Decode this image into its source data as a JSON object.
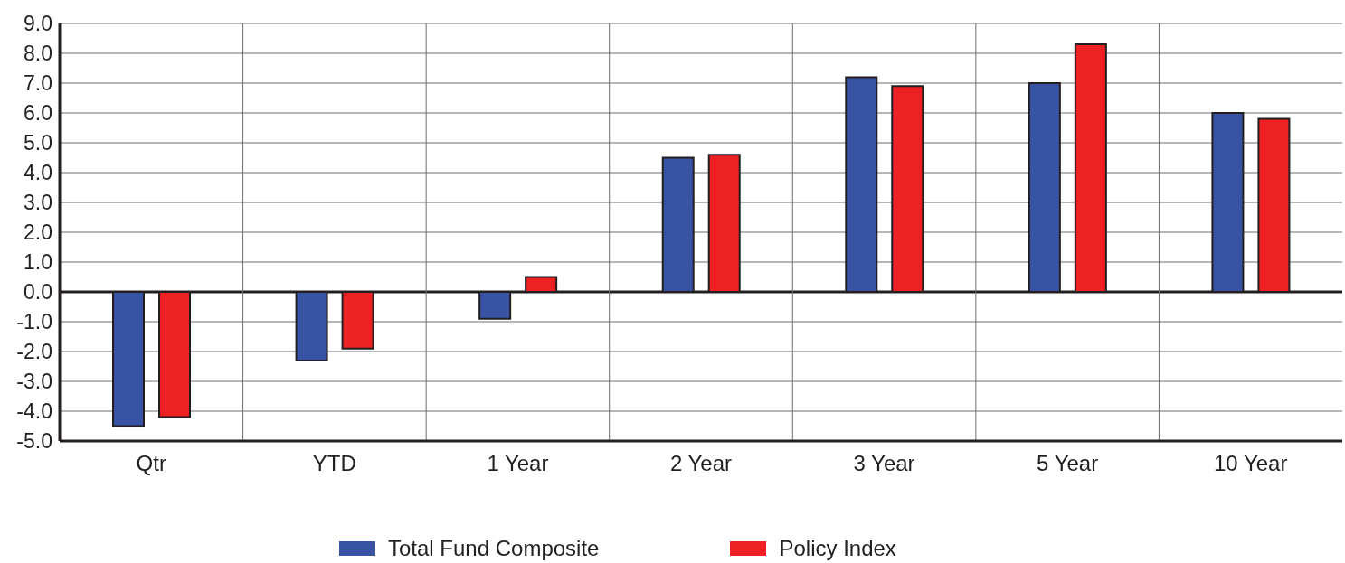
{
  "chart_data": {
    "type": "bar",
    "categories": [
      "Qtr",
      "YTD",
      "1 Year",
      "2 Year",
      "3 Year",
      "5 Year",
      "10 Year"
    ],
    "series": [
      {
        "name": "Total Fund Composite",
        "color": "#3953a4",
        "values": [
          -4.5,
          -2.3,
          -0.9,
          4.5,
          7.2,
          7.0,
          6.0
        ]
      },
      {
        "name": "Policy Index",
        "color": "#ed2024",
        "values": [
          -4.2,
          -1.9,
          0.5,
          4.6,
          6.9,
          8.3,
          5.8
        ]
      }
    ],
    "ylim": [
      -5,
      9
    ],
    "yticks": [
      {
        "value": -5,
        "label": "-5.0"
      },
      {
        "value": -4,
        "label": "-4.0"
      },
      {
        "value": -3,
        "label": "-3.0"
      },
      {
        "value": -2,
        "label": "-2.0"
      },
      {
        "value": -1,
        "label": "-1.0"
      },
      {
        "value": 0,
        "label": "0.0"
      },
      {
        "value": 1,
        "label": "1.0"
      },
      {
        "value": 2,
        "label": "2.0"
      },
      {
        "value": 3,
        "label": "3.0"
      },
      {
        "value": 4,
        "label": "4.0"
      },
      {
        "value": 5,
        "label": "5.0"
      },
      {
        "value": 6,
        "label": "6.0"
      },
      {
        "value": 7,
        "label": "7.0"
      },
      {
        "value": 8,
        "label": "8.0"
      },
      {
        "value": 9,
        "label": "9.0"
      }
    ],
    "grid": true,
    "legend": "bottom"
  }
}
